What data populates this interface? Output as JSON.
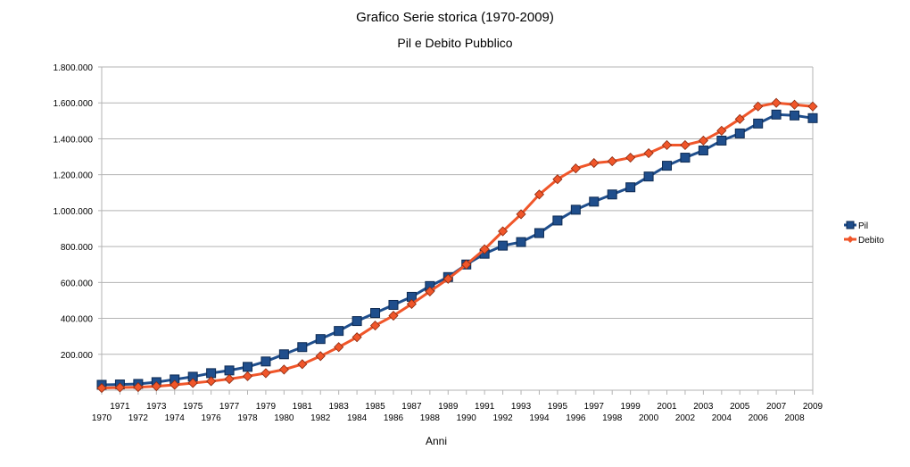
{
  "chart_data": {
    "type": "line",
    "title": "Grafico Serie storica (1970-2009)",
    "subtitle": "Pil e Debito Pubblico",
    "xlabel": "Anni",
    "ylabel": "",
    "ylim": [
      0,
      1800000
    ],
    "yticks": [
      200000,
      400000,
      600000,
      800000,
      1000000,
      1200000,
      1400000,
      1600000,
      1800000
    ],
    "ytick_labels": [
      "200.000",
      "400.000",
      "600.000",
      "800.000",
      "1.000.000",
      "1.200.000",
      "1.400.000",
      "1.600.000",
      "1.800.000"
    ],
    "grid": true,
    "legend": "right",
    "x": [
      1970,
      1971,
      1972,
      1973,
      1974,
      1975,
      1976,
      1977,
      1978,
      1979,
      1980,
      1981,
      1982,
      1983,
      1984,
      1985,
      1986,
      1987,
      1988,
      1989,
      1990,
      1991,
      1992,
      1993,
      1994,
      1995,
      1996,
      1997,
      1998,
      1999,
      2000,
      2001,
      2002,
      2003,
      2004,
      2005,
      2006,
      2007,
      2008,
      2009
    ],
    "series": [
      {
        "name": "Pil",
        "color": "#1f4e8c",
        "marker": "square",
        "values": [
          30000,
          32000,
          35000,
          45000,
          60000,
          75000,
          95000,
          110000,
          130000,
          160000,
          200000,
          240000,
          285000,
          330000,
          385000,
          430000,
          475000,
          520000,
          580000,
          630000,
          700000,
          760000,
          805000,
          825000,
          875000,
          945000,
          1005000,
          1050000,
          1090000,
          1130000,
          1190000,
          1250000,
          1295000,
          1335000,
          1390000,
          1430000,
          1485000,
          1535000,
          1530000,
          1515000
        ]
      },
      {
        "name": "Debito",
        "color": "#f0562a",
        "marker": "diamond",
        "values": [
          12000,
          15000,
          17000,
          22000,
          30000,
          40000,
          50000,
          62000,
          78000,
          95000,
          115000,
          145000,
          190000,
          240000,
          295000,
          360000,
          415000,
          480000,
          550000,
          620000,
          700000,
          785000,
          885000,
          980000,
          1090000,
          1175000,
          1235000,
          1265000,
          1275000,
          1295000,
          1320000,
          1365000,
          1365000,
          1390000,
          1445000,
          1510000,
          1580000,
          1600000,
          1590000,
          1580000
        ]
      }
    ]
  }
}
